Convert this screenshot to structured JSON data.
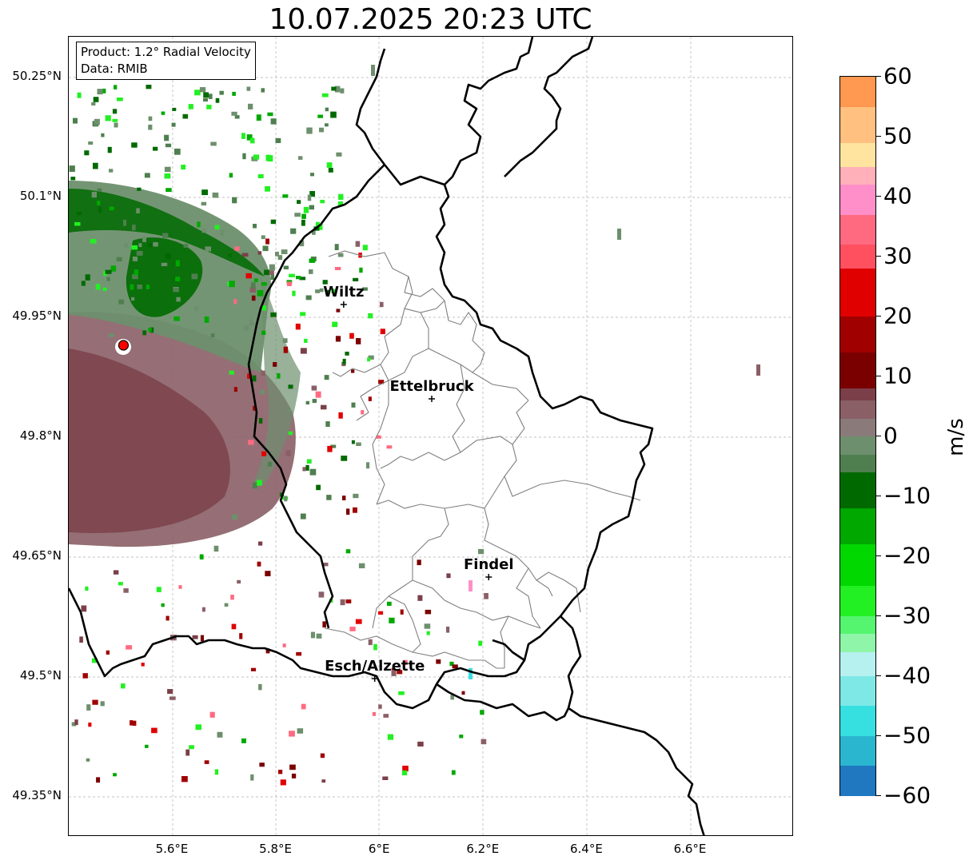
{
  "title": "10.07.2025 20:23 UTC",
  "info": {
    "product": "Product: 1.2° Radial Velocity",
    "source": "Data: RMIB"
  },
  "lat_ticks": [
    "50.25°N",
    "50.1°N",
    "49.95°N",
    "49.8°N",
    "49.65°N",
    "49.5°N",
    "49.35°N"
  ],
  "lon_ticks": [
    "5.6°E",
    "5.8°E",
    "6°E",
    "6.2°E",
    "6.4°E",
    "6.6°E"
  ],
  "cities": [
    {
      "name": "Wiltz",
      "lon": 5.93,
      "lat": 49.966
    },
    {
      "name": "Ettelbruck",
      "lon": 6.1,
      "lat": 49.848
    },
    {
      "name": "Findel",
      "lon": 6.21,
      "lat": 49.625
    },
    {
      "name": "Esch/Alzette",
      "lon": 5.99,
      "lat": 49.498
    }
  ],
  "radar_site": {
    "lon": 5.505,
    "lat": 49.915,
    "color": "#ff0000"
  },
  "colorbar": {
    "unit": "m/s",
    "min": -60,
    "max": 60,
    "tick_labels": [
      "60",
      "50",
      "40",
      "30",
      "20",
      "10",
      "0",
      "−10",
      "−20",
      "−30",
      "−40",
      "−50",
      "−60"
    ],
    "bands": [
      {
        "from": -60,
        "to": -55,
        "color": "#1f78c0"
      },
      {
        "from": -55,
        "to": -50,
        "color": "#2bb6d0"
      },
      {
        "from": -50,
        "to": -45,
        "color": "#36dfe0"
      },
      {
        "from": -45,
        "to": -40,
        "color": "#7ee8e6"
      },
      {
        "from": -40,
        "to": -36,
        "color": "#b6f0ef"
      },
      {
        "from": -36,
        "to": -33,
        "color": "#8ff5a8"
      },
      {
        "from": -33,
        "to": -30,
        "color": "#55f570"
      },
      {
        "from": -30,
        "to": -25,
        "color": "#22f022"
      },
      {
        "from": -25,
        "to": -18,
        "color": "#00d800"
      },
      {
        "from": -18,
        "to": -12,
        "color": "#00a800"
      },
      {
        "from": -12,
        "to": -6,
        "color": "#006a00"
      },
      {
        "from": -6,
        "to": -3,
        "color": "#4f7f4f"
      },
      {
        "from": -3,
        "to": 0,
        "color": "#6d8f6d"
      },
      {
        "from": 0,
        "to": 3,
        "color": "#8a7a7a"
      },
      {
        "from": 3,
        "to": 6,
        "color": "#8a5f66"
      },
      {
        "from": 6,
        "to": 8,
        "color": "#7a3f48"
      },
      {
        "from": 8,
        "to": 14,
        "color": "#7a0000"
      },
      {
        "from": 14,
        "to": 20,
        "color": "#a00000"
      },
      {
        "from": 20,
        "to": 28,
        "color": "#e00000"
      },
      {
        "from": 28,
        "to": 32,
        "color": "#ff5060"
      },
      {
        "from": 32,
        "to": 37,
        "color": "#ff6a80"
      },
      {
        "from": 37,
        "to": 42,
        "color": "#ff8fc8"
      },
      {
        "from": 42,
        "to": 45,
        "color": "#ffb0b8"
      },
      {
        "from": 45,
        "to": 49,
        "color": "#ffe4a0"
      },
      {
        "from": 49,
        "to": 55,
        "color": "#ffc080"
      },
      {
        "from": 55,
        "to": 60,
        "color": "#ff9850"
      }
    ]
  }
}
